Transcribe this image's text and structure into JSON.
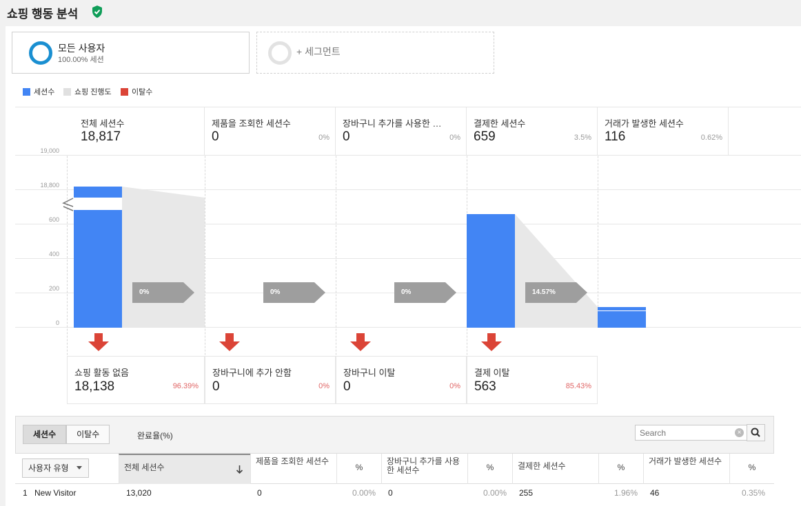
{
  "header": {
    "title": "쇼핑 행동 분석"
  },
  "segments": {
    "primary": {
      "title": "모든 사용자",
      "subtitle": "100.00% 세션"
    },
    "add_label": "+ 세그먼트"
  },
  "legend": [
    {
      "label": "세션수",
      "color": "#4285f4"
    },
    {
      "label": "쇼핑 진행도",
      "color": "#e0e0e0"
    },
    {
      "label": "이탈수",
      "color": "#db4437"
    }
  ],
  "chart_data": {
    "type": "bar",
    "categories": [
      "전체 세션수",
      "제품을 조회한 세션수",
      "장바구니 추가를 사용한 세...",
      "결제한 세션수",
      "거래가 발생한 세션수"
    ],
    "values": [
      18817,
      0,
      0,
      659,
      116
    ],
    "y_ticks": [
      "19,000",
      "18,800",
      "600",
      "400",
      "200",
      "0"
    ],
    "axis_break": true
  },
  "stages": [
    {
      "label": "전체 세션수",
      "value": "18,817",
      "pct": ""
    },
    {
      "label": "제품을 조회한 세션수",
      "value": "0",
      "pct": "0%"
    },
    {
      "label": "장바구니 추가를 사용한 세...",
      "value": "0",
      "pct": "0%"
    },
    {
      "label": "결제한 세션수",
      "value": "659",
      "pct": "3.5%"
    },
    {
      "label": "거래가 발생한 세션수",
      "value": "116",
      "pct": "0.62%"
    }
  ],
  "progress": [
    "0%",
    "0%",
    "0%",
    "14.57%"
  ],
  "exits": [
    {
      "label": "쇼핑 활동 없음",
      "value": "18,138",
      "pct": "96.39%"
    },
    {
      "label": "장바구니에 추가 안함",
      "value": "0",
      "pct": "0%"
    },
    {
      "label": "장바구니 이탈",
      "value": "0",
      "pct": "0%"
    },
    {
      "label": "결제 이탈",
      "value": "563",
      "pct": "85.43%"
    }
  ],
  "table": {
    "tabs": [
      "세션수",
      "이탈수"
    ],
    "tab_plain": "완료율(%)",
    "search_placeholder": "Search",
    "dimension_button": "사용자 유형",
    "columns": [
      "전체 세션수",
      "제품을 조회한 세션수",
      "%",
      "장바구니 추가를 사용한 세션수",
      "%",
      "결제한 세션수",
      "%",
      "거래가 발생한 세션수",
      "%"
    ],
    "rows": [
      {
        "index": "1",
        "name": "New Visitor",
        "cells": [
          "13,020",
          "0",
          "0.00%",
          "0",
          "0.00%",
          "255",
          "1.96%",
          "46",
          "0.35%"
        ]
      }
    ]
  }
}
